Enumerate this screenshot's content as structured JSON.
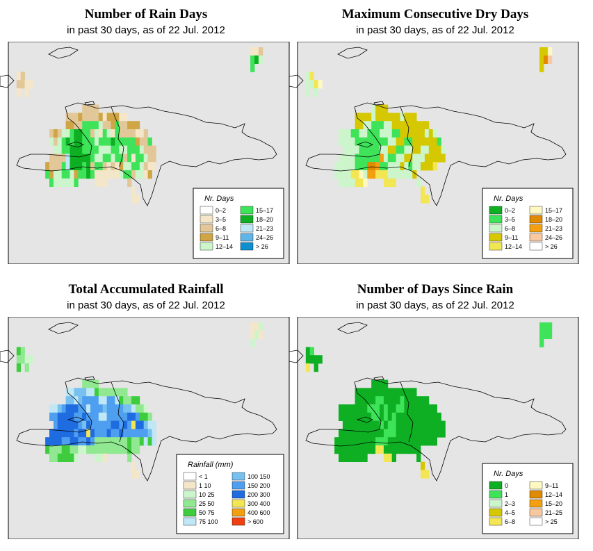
{
  "panels": [
    {
      "id": "rain-days",
      "title": "Number of Rain Days",
      "subtitle": "in past 30 days, as of  22 Jul. 2012",
      "legend": {
        "title": "Nr. Days",
        "items": [
          {
            "label": "0–2",
            "color": "#ffffff"
          },
          {
            "label": "3–5",
            "color": "#f4e6c8"
          },
          {
            "label": "6–8",
            "color": "#e2c898"
          },
          {
            "label": "9–11",
            "color": "#cfa545"
          },
          {
            "label": "12–14",
            "color": "#ccf5cc"
          },
          {
            "label": "15–17",
            "color": "#3ee35a"
          },
          {
            "label": "18–20",
            "color": "#0eaf23"
          },
          {
            "label": "21–23",
            "color": "#bfe7f5"
          },
          {
            "label": "24–26",
            "color": "#5fb4e8"
          },
          {
            "label": "> 26",
            "color": "#0e8fd0"
          }
        ]
      },
      "colors": [
        "#ffffff",
        "#f4e6c8",
        "#e2c898",
        "#cfa545",
        "#ccf5cc",
        "#3ee35a",
        "#0eaf23",
        "#bfe7f5",
        "#5fb4e8",
        "#0e8fd0"
      ],
      "grid": [
        "...........................................................112.......",
        "...........................................................564.......",
        "...........................................................5.........",
        "..12.................................................................",
        "..2211...............................................................",
        "..1.1................................................................",
        "...............................................................",
        "..................2222...........................................",
        "..............222322223133311.....................................",
        "..............332255554223522333.................................",
        "..........232445665524154152222112.................................",
        "..........4245656655545556555553225...............................",
        "...........4455666555544455445554222...............................",
        "..........22227666665445545525155422...............................",
        ".........322257666562552121344554211...............................",
        ".........53445543556511111145524413..............................",
        "..........5444445....111.....2.....................................",
        "..............................1...................................",
        "..............................11.................................."
      ]
    },
    {
      "id": "max-dry-days",
      "title": "Maximum Consecutive Dry Days",
      "subtitle": "in past 30 days, as of  22 Jul. 2012",
      "legend": {
        "title": "Nr. Days",
        "items": [
          {
            "label": "0–2",
            "color": "#0eaf23"
          },
          {
            "label": "3–5",
            "color": "#3ee35a"
          },
          {
            "label": "6–8",
            "color": "#ccf5cc"
          },
          {
            "label": "9–11",
            "color": "#d6c800"
          },
          {
            "label": "12–14",
            "color": "#f3e655"
          },
          {
            "label": "15–17",
            "color": "#fff8c0"
          },
          {
            "label": "18–20",
            "color": "#e08a00"
          },
          {
            "label": "21–23",
            "color": "#f2a010"
          },
          {
            "label": "24–26",
            "color": "#f8c8a0"
          },
          {
            "label": "> 26",
            "color": "#ffffff"
          }
        ]
      },
      "colors": [
        "#0eaf23",
        "#3ee35a",
        "#ccf5cc",
        "#d6c800",
        "#f3e655",
        "#fff8c0",
        "#e08a00",
        "#f2a010",
        "#f8c8a0",
        "#ffffff"
      ],
      "grid": [
        "...........................................................335.......",
        "...........................................................368.......",
        "...........................................................3.........",
        "..24.................................................................",
        "..2245...............................................................",
        "..2.2................................................................",
        "...............................................................",
        "..................2333...........................................",
        "..............333323333332333.....................................",
        "..............332211122333333333.................................",
        "..........222112211122211333333232.................................",
        "..........2222111111112233113333331...............................",
        "...........2222111112233112233223332...............................",
        "..........22221111117211223322233333...............................",
        ".........2222211166711222321223334..............................",
        ".........22224452774442222223..................................",
        "..........2222445....444.....2.....................................",
        "..............................4...................................",
        "..............................44.................................."
      ]
    },
    {
      "id": "total-rainfall",
      "title": "Total Accumulated Rainfall",
      "subtitle": "in past 30 days, as of  22 Jul. 2012",
      "legend": {
        "title": "Rainfall (mm)",
        "items": [
          {
            "label": "< 1",
            "color": "#ffffff"
          },
          {
            "label": "1   10",
            "color": "#f4e6c8"
          },
          {
            "label": "10   25",
            "color": "#ccf5cc"
          },
          {
            "label": "25   50",
            "color": "#90e890"
          },
          {
            "label": "50   75",
            "color": "#3ecc3e"
          },
          {
            "label": "75   100",
            "color": "#bfe7f5"
          },
          {
            "label": "100   150",
            "color": "#78c0f0"
          },
          {
            "label": "150   200",
            "color": "#4f9ff0"
          },
          {
            "label": "200   300",
            "color": "#1e6ce0"
          },
          {
            "label": "300   400",
            "color": "#f3e655"
          },
          {
            "label": "400   600",
            "color": "#f2a010"
          },
          {
            "label": "> 600",
            "color": "#f04010"
          }
        ]
      },
      "colors": [
        "#ffffff",
        "#f4e6c8",
        "#ccf5cc",
        "#90e890",
        "#3ecc3e",
        "#bfe7f5",
        "#78c0f0",
        "#4f9ff0",
        "#1e6ce0",
        "#f3e655",
        "#f2a010",
        "#f04010"
      ],
      "grid": [
        "...........................................................112.......",
        "...........................................................121.......",
        "...........................................................2.........",
        "..43.................................................................",
        "..3322...............................................................",
        "..4.3................................................................",
        "...............................................................",
        "..................3333...........................................",
        "..............556665543333333.....................................",
        "..............665677775577543344.................................",
        "..........556788877577767777665332.................................",
        "..........7788887787775577777887443...............................",
        "...........7888887687777788787988655...............................",
        "..........88888878898777877877777765...............................",
        ".........888877887787333333334334545...............................",
        ".........43334433223333333333433..............................",
        "..........3344442....221.....3.....................................",
        "..............................1...................................",
        "..............................11.................................."
      ]
    },
    {
      "id": "days-since-rain",
      "title": "Number of Days Since Rain",
      "subtitle": "in past 30 days, as of  22 Jul. 2012",
      "legend": {
        "title": "Nr. Days",
        "items": [
          {
            "label": "0",
            "color": "#0eaf23"
          },
          {
            "label": "1",
            "color": "#3ee35a"
          },
          {
            "label": "2–3",
            "color": "#ccf5cc"
          },
          {
            "label": "4–5",
            "color": "#d6c800"
          },
          {
            "label": "6–8",
            "color": "#f3e655"
          },
          {
            "label": "9–11",
            "color": "#fff8c0"
          },
          {
            "label": "12–14",
            "color": "#e08a00"
          },
          {
            "label": "15–20",
            "color": "#f2a010"
          },
          {
            "label": "21–25",
            "color": "#f8c8a0"
          },
          {
            "label": "> 25",
            "color": "#ffffff"
          }
        ]
      },
      "colors": [
        "#0eaf23",
        "#3ee35a",
        "#ccf5cc",
        "#d6c800",
        "#f3e655",
        "#fff8c0",
        "#e08a00",
        "#f2a010",
        "#f8c8a0",
        "#ffffff"
      ],
      "grid": [
        "...........................................................111.......",
        "...........................................................111.......",
        "...........................................................1.........",
        "..01.................................................................",
        "..0000...............................................................",
        "..4.0................................................................",
        "...............................................................",
        "..................0000...........................................",
        "..............000000000000000.....................................",
        "..............000001100001000000.................................",
        "..........000000011101001100000000.................................",
        "..........0000000011010100000000000...............................",
        "...........0000000001011000000000000...............................",
        "..........00000000000111000000000000...............................",
        ".........0000000000111000000000000...............................",
        ".........000000000044000000000..................................",
        "..........0000000....440.....0.....................................",
        "..............................3...................................",
        "..............................44.................................."
      ]
    }
  ]
}
